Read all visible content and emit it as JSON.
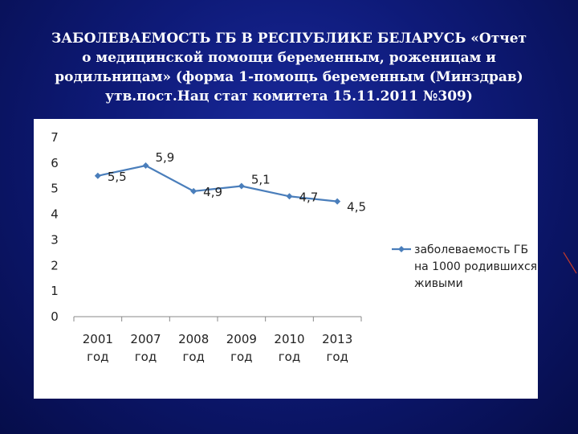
{
  "slide": {
    "title_lines": [
      "ЗАБОЛЕВАЕМОСТЬ ГБ В РЕСПУБЛИКЕ БЕЛАРУСЬ «Отчет",
      "о медицинской помощи беременным, роженицам и",
      "родильницам» (форма 1-помощь беременным (Минздрав)",
      "утв.пост.Нац стат комитета 15.11.2011 №309)"
    ]
  },
  "chart_data": {
    "type": "line",
    "title": "",
    "xlabel": "",
    "ylabel": "",
    "categories": [
      [
        "2001",
        "год"
      ],
      [
        "2007",
        "год"
      ],
      [
        "2008",
        "год"
      ],
      [
        "2009",
        "год"
      ],
      [
        "2010",
        "год"
      ],
      [
        "2013",
        "год"
      ]
    ],
    "series": [
      {
        "name": [
          "заболеваемость ГБ",
          "на 1000 родившихся",
          "живыми"
        ],
        "values": [
          5.5,
          5.9,
          4.9,
          5.1,
          4.7,
          4.5
        ],
        "labels": [
          "5,5",
          "5,9",
          "4,9",
          "5,1",
          "4,7",
          "4,5"
        ],
        "color": "#4a7ebb"
      }
    ],
    "ylim": [
      0,
      7
    ],
    "yticks": [
      "0",
      "1",
      "2",
      "3",
      "4",
      "5",
      "6",
      "7"
    ],
    "grid": false,
    "legend_position": "right"
  }
}
